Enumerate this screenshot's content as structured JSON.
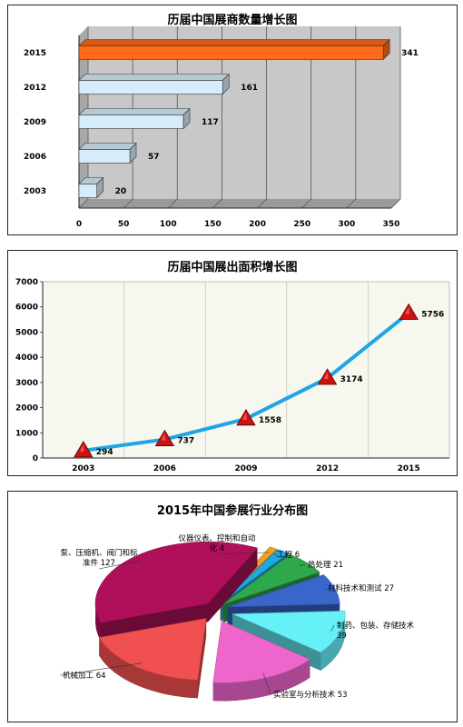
{
  "chart_data": [
    {
      "type": "bar",
      "orientation": "horizontal",
      "title": "历届中国展商数量增长图",
      "categories": [
        "2003",
        "2006",
        "2009",
        "2012",
        "2015"
      ],
      "values": [
        20,
        57,
        117,
        161,
        341
      ],
      "value_labels": [
        "20",
        "57",
        "117",
        "161",
        "341"
      ],
      "xlim": [
        0,
        350
      ],
      "x_ticks": [
        "0",
        "50",
        "100",
        "150",
        "200",
        "250",
        "300",
        "350"
      ],
      "grid": true,
      "colors": {
        "bar": "#d6ecfa",
        "bar_highlight": "#ff6a1a",
        "background": "#c8c8c8"
      }
    },
    {
      "type": "line",
      "title": "历届中国展出面积增长图",
      "x": [
        "2003",
        "2006",
        "2009",
        "2012",
        "2015"
      ],
      "values": [
        294,
        737,
        1558,
        3174,
        5756
      ],
      "value_labels": [
        "294",
        "737",
        "1558",
        "3174",
        "5756"
      ],
      "ylim": [
        0,
        7000
      ],
      "y_ticks": [
        "0",
        "1000",
        "2000",
        "3000",
        "4000",
        "5000",
        "6000",
        "7000"
      ],
      "grid": true,
      "colors": {
        "line": "#1ea5e6",
        "marker": "#cc1111",
        "background": "#f6f7ee"
      }
    },
    {
      "type": "pie",
      "title": "2015年中国参展行业分布图",
      "slices": [
        {
          "name": "仪器仪表、控制和自动化",
          "value": 4,
          "label_lines": [
            "仪器仪表、控制和自动",
            "化 4"
          ],
          "color": "#f0a020"
        },
        {
          "name": "工程",
          "value": 6,
          "label_lines": [
            "工程 6"
          ],
          "color": "#20a8e0"
        },
        {
          "name": "热处理",
          "value": 21,
          "label_lines": [
            "热处理 21"
          ],
          "color": "#2ea84a"
        },
        {
          "name": "材料技术和测试",
          "value": 27,
          "label_lines": [
            "材料技术和测试 27"
          ],
          "color": "#3a66cc"
        },
        {
          "name": "制药、包装、存储技术",
          "value": 39,
          "label_lines": [
            "制药、包装、存储技术",
            "39"
          ],
          "color": "#66f0f8"
        },
        {
          "name": "实验室与分析技术",
          "value": 53,
          "label_lines": [
            "实验室与分析技术 53"
          ],
          "color": "#ee66cc"
        },
        {
          "name": "机械加工",
          "value": 64,
          "label_lines": [
            "机械加工 64"
          ],
          "color": "#f05050"
        },
        {
          "name": "泵、压缩机、阀门和标准件",
          "value": 127,
          "label_lines": [
            "泵、压缩机、阀门和标",
            "准件 127"
          ],
          "color": "#b0105a"
        }
      ]
    }
  ]
}
